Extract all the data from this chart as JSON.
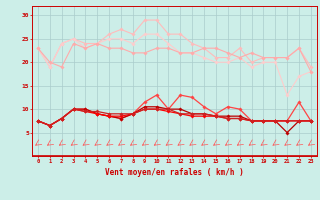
{
  "title": "",
  "xlabel": "Vent moyen/en rafales ( km/h )",
  "background_color": "#cceee8",
  "grid_color": "#aacccc",
  "xlim": [
    -0.5,
    23.5
  ],
  "ylim": [
    0,
    32
  ],
  "yticks": [
    5,
    10,
    15,
    20,
    25,
    30
  ],
  "xticks": [
    0,
    1,
    2,
    3,
    4,
    5,
    6,
    7,
    8,
    9,
    10,
    11,
    12,
    13,
    14,
    15,
    16,
    17,
    18,
    19,
    20,
    21,
    22,
    23
  ],
  "series": [
    {
      "y": [
        23,
        20,
        19,
        24,
        23,
        24,
        23,
        23,
        22,
        22,
        23,
        23,
        22,
        22,
        23,
        23,
        22,
        21,
        22,
        21,
        21,
        21,
        23,
        18
      ],
      "color": "#ffaaaa",
      "marker": "D",
      "markersize": 1.8,
      "linewidth": 0.8,
      "zorder": 3
    },
    {
      "y": [
        23,
        19,
        24,
        25,
        24,
        24,
        26,
        27,
        26,
        29,
        29,
        26,
        26,
        24,
        23,
        21,
        21,
        23,
        20,
        21,
        21,
        21,
        23,
        19
      ],
      "color": "#ffbbbb",
      "marker": "D",
      "markersize": 1.8,
      "linewidth": 0.8,
      "zorder": 2
    },
    {
      "y": [
        23,
        19,
        24,
        25,
        23,
        24,
        25,
        25,
        24,
        26,
        26,
        24,
        22,
        22,
        21,
        20,
        20,
        21,
        19,
        20,
        20,
        13,
        17,
        18
      ],
      "color": "#ffcccc",
      "marker": "D",
      "markersize": 1.8,
      "linewidth": 0.8,
      "zorder": 2
    },
    {
      "y": [
        7.5,
        6.5,
        8,
        10,
        10,
        9,
        8.5,
        8,
        9,
        11.5,
        13,
        10,
        13,
        12.5,
        10.5,
        9,
        10.5,
        10,
        7.5,
        7.5,
        7.5,
        7.5,
        11.5,
        7.5
      ],
      "color": "#ff4444",
      "marker": "D",
      "markersize": 1.8,
      "linewidth": 0.9,
      "zorder": 5
    },
    {
      "y": [
        7.5,
        6.5,
        8,
        10,
        10,
        9,
        8.5,
        8,
        9,
        10.5,
        10.5,
        10,
        10,
        9,
        9,
        8.5,
        8.5,
        8.5,
        7.5,
        7.5,
        7.5,
        5,
        7.5,
        7.5
      ],
      "color": "#bb0000",
      "marker": "D",
      "markersize": 1.8,
      "linewidth": 0.9,
      "zorder": 5
    },
    {
      "y": [
        7.5,
        6.5,
        8,
        10,
        9.5,
        9,
        8.5,
        8.5,
        9,
        10,
        10,
        9.5,
        9,
        8.5,
        8.5,
        8.5,
        8,
        8,
        7.5,
        7.5,
        7.5,
        7.5,
        7.5,
        7.5
      ],
      "color": "#ff0000",
      "marker": "D",
      "markersize": 1.8,
      "linewidth": 0.9,
      "zorder": 5
    },
    {
      "y": [
        7.5,
        6.5,
        8,
        10,
        9.5,
        9.5,
        9,
        9,
        9,
        10,
        10,
        10,
        9,
        9,
        9,
        8.5,
        8,
        8,
        7.5,
        7.5,
        7.5,
        7.5,
        7.5,
        7.5
      ],
      "color": "#cc2222",
      "marker": "D",
      "markersize": 1.8,
      "linewidth": 0.9,
      "zorder": 5
    }
  ],
  "wind_arrows_color": "#ff5555"
}
